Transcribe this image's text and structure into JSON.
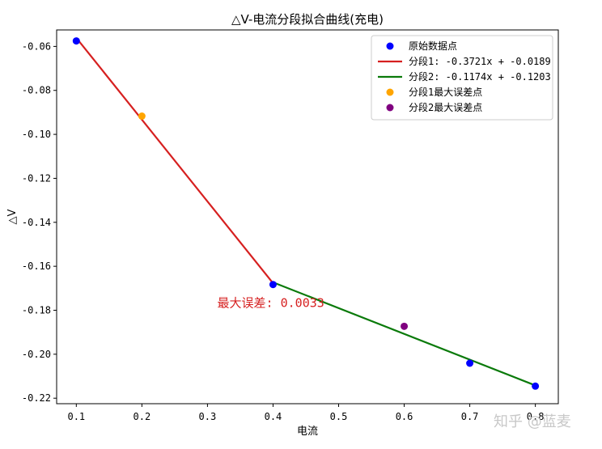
{
  "chart_data": {
    "type": "scatter",
    "title": "△V-电流分段拟合曲线(充电)",
    "xlabel": "电流",
    "ylabel": "△V",
    "xlim": [
      0.07,
      0.835
    ],
    "ylim": [
      -0.2225,
      -0.0525
    ],
    "xticks": [
      "0.1",
      "0.2",
      "0.3",
      "0.4",
      "0.5",
      "0.6",
      "0.7",
      "0.8"
    ],
    "xtick_values": [
      0.1,
      0.2,
      0.3,
      0.4,
      0.5,
      0.6,
      0.7,
      0.8
    ],
    "yticks": [
      "-0.06",
      "-0.08",
      "-0.10",
      "-0.12",
      "-0.14",
      "-0.16",
      "-0.18",
      "-0.20",
      "-0.22"
    ],
    "ytick_values": [
      -0.06,
      -0.08,
      -0.1,
      -0.12,
      -0.14,
      -0.16,
      -0.18,
      -0.2,
      -0.22
    ],
    "grid": false,
    "legend_position": "top-right",
    "series": [
      {
        "name": "原始数据点",
        "kind": "scatter",
        "color": "#0000ff",
        "x": [
          0.1,
          0.4,
          0.7,
          0.8
        ],
        "y": [
          -0.0575,
          -0.1683,
          -0.2041,
          -0.2145
        ]
      },
      {
        "name": "分段1: -0.3721x + -0.0189",
        "kind": "line",
        "color": "#d62020",
        "x": [
          0.1,
          0.4
        ],
        "y": [
          -0.0561,
          -0.1677
        ]
      },
      {
        "name": "分段2: -0.1174x + -0.1203",
        "kind": "line",
        "color": "#0a7a0a",
        "x": [
          0.4,
          0.8
        ],
        "y": [
          -0.1673,
          -0.2142
        ]
      },
      {
        "name": "分段1最大误差点",
        "kind": "scatter",
        "color": "#ffa500",
        "x": [
          0.2
        ],
        "y": [
          -0.0917
        ]
      },
      {
        "name": "分段2最大误差点",
        "kind": "scatter",
        "color": "#800080",
        "x": [
          0.6
        ],
        "y": [
          -0.1873
        ]
      }
    ],
    "annotations": [
      {
        "text": "最大误差: 0.0033",
        "x": 0.315,
        "y": -0.1785,
        "color": "#d62020"
      }
    ]
  },
  "watermark": "知乎 @蓝麦"
}
